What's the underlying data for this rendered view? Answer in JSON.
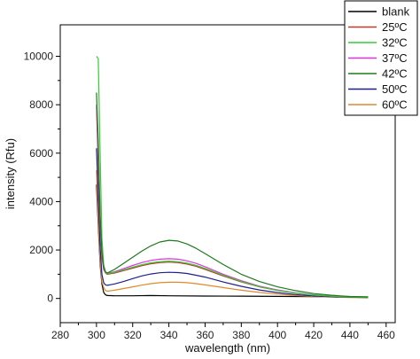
{
  "chart_data": {
    "type": "line",
    "title": "",
    "xlabel": "wavelength (nm)",
    "ylabel": "intensity (Rfu)",
    "xlim": [
      280,
      465
    ],
    "ylim": [
      -1000,
      11300
    ],
    "x_ticks": [
      280,
      300,
      320,
      340,
      360,
      380,
      400,
      420,
      440,
      460
    ],
    "x_tick_labels": [
      "280",
      "300",
      "320",
      "340",
      "360",
      "380",
      "400",
      "420",
      "440",
      "460"
    ],
    "y_ticks": [
      0,
      2000,
      4000,
      6000,
      8000,
      10000
    ],
    "y_tick_labels": [
      "0",
      "2000",
      "4000",
      "6000",
      "8000",
      "10000"
    ],
    "grid": false,
    "legend_position": "top-right",
    "series": [
      {
        "name": "blank",
        "color": "#000000",
        "x": [
          300,
          301,
          302,
          303,
          304,
          305,
          306,
          310,
          320,
          330,
          340,
          360,
          380,
          400,
          420,
          440,
          450
        ],
        "y": [
          4700,
          3000,
          1400,
          600,
          250,
          150,
          120,
          110,
          110,
          120,
          110,
          100,
          95,
          85,
          75,
          65,
          60
        ]
      },
      {
        "name": "25ºC",
        "color": "#c0392b",
        "x": [
          300,
          301,
          302,
          303,
          304,
          305,
          306,
          310,
          315,
          320,
          325,
          330,
          335,
          340,
          345,
          350,
          355,
          360,
          370,
          380,
          390,
          400,
          410,
          420,
          430,
          440,
          450
        ],
        "y": [
          7900,
          5500,
          3000,
          1700,
          1200,
          1050,
          1000,
          1050,
          1150,
          1250,
          1350,
          1430,
          1480,
          1500,
          1480,
          1420,
          1330,
          1200,
          930,
          680,
          480,
          330,
          220,
          140,
          90,
          60,
          45
        ]
      },
      {
        "name": "32ºC",
        "color": "#33cc33",
        "x": [
          300,
          301,
          302,
          303,
          304,
          305,
          306,
          310,
          315,
          320,
          325,
          330,
          335,
          340,
          345,
          350,
          355,
          360,
          370,
          380,
          390,
          400,
          410,
          420,
          430,
          440,
          450
        ],
        "y": [
          10000,
          9900,
          6000,
          2500,
          1400,
          1080,
          1020,
          1080,
          1180,
          1290,
          1390,
          1470,
          1520,
          1540,
          1520,
          1460,
          1370,
          1240,
          960,
          700,
          490,
          330,
          220,
          140,
          90,
          60,
          45
        ]
      },
      {
        "name": "37ºC",
        "color": "#dd33dd",
        "x": [
          300,
          301,
          302,
          303,
          304,
          305,
          306,
          310,
          315,
          320,
          325,
          330,
          335,
          340,
          345,
          350,
          355,
          360,
          370,
          380,
          390,
          400,
          410,
          420,
          430,
          440,
          450
        ],
        "y": [
          8000,
          6000,
          3200,
          1800,
          1250,
          1080,
          1030,
          1100,
          1230,
          1360,
          1480,
          1570,
          1620,
          1640,
          1620,
          1550,
          1450,
          1310,
          1000,
          730,
          510,
          350,
          230,
          150,
          95,
          65,
          50
        ]
      },
      {
        "name": "42ºC",
        "color": "#1e7a1e",
        "x": [
          300,
          301,
          302,
          303,
          304,
          305,
          306,
          310,
          315,
          320,
          325,
          330,
          335,
          340,
          345,
          350,
          355,
          360,
          370,
          380,
          390,
          400,
          410,
          420,
          430,
          440,
          450
        ],
        "y": [
          8500,
          6500,
          3500,
          1900,
          1300,
          1100,
          1050,
          1200,
          1450,
          1700,
          1950,
          2170,
          2330,
          2400,
          2370,
          2250,
          2070,
          1850,
          1400,
          1000,
          700,
          480,
          320,
          200,
          130,
          80,
          60
        ]
      },
      {
        "name": "50ºC",
        "color": "#1f1f8f",
        "x": [
          300,
          301,
          302,
          303,
          304,
          305,
          306,
          310,
          315,
          320,
          325,
          330,
          335,
          340,
          345,
          350,
          355,
          360,
          370,
          380,
          390,
          400,
          410,
          420,
          430,
          440,
          450
        ],
        "y": [
          6200,
          4200,
          2100,
          1000,
          650,
          560,
          540,
          600,
          700,
          820,
          930,
          1010,
          1060,
          1080,
          1070,
          1030,
          960,
          880,
          680,
          500,
          350,
          240,
          160,
          100,
          70,
          50,
          40
        ]
      },
      {
        "name": "60ºC",
        "color": "#e08a2a",
        "x": [
          300,
          301,
          302,
          303,
          304,
          305,
          306,
          310,
          315,
          320,
          325,
          330,
          335,
          340,
          345,
          350,
          355,
          360,
          370,
          380,
          390,
          400,
          410,
          420,
          430,
          440,
          450
        ],
        "y": [
          5300,
          3200,
          1500,
          700,
          450,
          330,
          300,
          340,
          410,
          480,
          550,
          610,
          650,
          670,
          670,
          650,
          610,
          560,
          450,
          340,
          250,
          180,
          120,
          80,
          55,
          40,
          30
        ]
      }
    ]
  }
}
